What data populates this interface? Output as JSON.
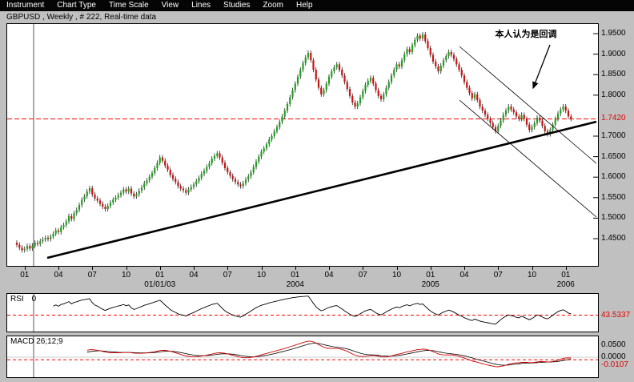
{
  "menu": {
    "items": [
      "Instrument",
      "Chart Type",
      "Time Scale",
      "View",
      "Lines",
      "Studies",
      "Zoom",
      "Help"
    ]
  },
  "title_bar": {
    "text": "GBPUSD , Weekly , # 222, Real-time data"
  },
  "chart_data": {
    "type": "candlestick",
    "symbol": "GBPUSD",
    "timeframe": "Weekly",
    "bar_count_label": "# 222",
    "first_open": 1.44,
    "wick": 0.006,
    "closes": [
      1.435,
      1.428,
      1.422,
      1.425,
      1.432,
      1.426,
      1.433,
      1.44,
      1.437,
      1.444,
      1.448,
      1.452,
      1.449,
      1.455,
      1.462,
      1.47,
      1.466,
      1.478,
      1.483,
      1.492,
      1.505,
      1.498,
      1.512,
      1.52,
      1.532,
      1.545,
      1.553,
      1.565,
      1.573,
      1.558,
      1.548,
      1.543,
      1.535,
      1.528,
      1.522,
      1.53,
      1.538,
      1.545,
      1.55,
      1.556,
      1.562,
      1.57,
      1.565,
      1.572,
      1.56,
      1.553,
      1.558,
      1.567,
      1.575,
      1.585,
      1.592,
      1.601,
      1.61,
      1.622,
      1.635,
      1.648,
      1.64,
      1.628,
      1.618,
      1.605,
      1.596,
      1.588,
      1.578,
      1.572,
      1.568,
      1.562,
      1.57,
      1.576,
      1.582,
      1.59,
      1.598,
      1.608,
      1.615,
      1.625,
      1.634,
      1.645,
      1.652,
      1.658,
      1.648,
      1.635,
      1.622,
      1.612,
      1.603,
      1.595,
      1.588,
      1.582,
      1.578,
      1.585,
      1.594,
      1.602,
      1.612,
      1.625,
      1.638,
      1.65,
      1.662,
      1.67,
      1.68,
      1.692,
      1.7,
      1.712,
      1.722,
      1.735,
      1.748,
      1.762,
      1.778,
      1.795,
      1.812,
      1.828,
      1.845,
      1.862,
      1.878,
      1.892,
      1.903,
      1.885,
      1.862,
      1.838,
      1.818,
      1.802,
      1.812,
      1.828,
      1.845,
      1.858,
      1.868,
      1.875,
      1.862,
      1.848,
      1.832,
      1.815,
      1.798,
      1.782,
      1.772,
      1.78,
      1.795,
      1.81,
      1.825,
      1.835,
      1.842,
      1.828,
      1.812,
      1.798,
      1.79,
      1.802,
      1.818,
      1.832,
      1.848,
      1.862,
      1.875,
      1.87,
      1.885,
      1.9,
      1.912,
      1.905,
      1.922,
      1.935,
      1.945,
      1.938,
      1.948,
      1.932,
      1.915,
      1.898,
      1.882,
      1.87,
      1.858,
      1.872,
      1.885,
      1.895,
      1.905,
      1.898,
      1.888,
      1.875,
      1.862,
      1.848,
      1.832,
      1.818,
      1.805,
      1.792,
      1.802,
      1.788,
      1.772,
      1.762,
      1.752,
      1.742,
      1.732,
      1.722,
      1.712,
      1.725,
      1.738,
      1.752,
      1.762,
      1.772,
      1.765,
      1.758,
      1.748,
      1.742,
      1.752,
      1.742,
      1.728,
      1.715,
      1.722,
      1.732,
      1.745,
      1.738,
      1.725,
      1.712,
      1.705,
      1.715,
      1.728,
      1.742,
      1.755,
      1.765,
      1.772,
      1.762,
      1.748,
      1.742
    ],
    "y_axis_labels": [
      "1.9500",
      "1.9000",
      "1.8500",
      "1.8000",
      "1.7000",
      "1.6500",
      "1.6000",
      "1.5500",
      "1.5000",
      "1.4500"
    ],
    "price_line": {
      "value": 1.742,
      "label": "1.7420"
    },
    "x_axis": {
      "month_ticks": [
        "01",
        "04",
        "07",
        "10",
        "01",
        "04",
        "07",
        "10",
        "01",
        "04",
        "07",
        "10",
        "01",
        "04",
        "07",
        "10",
        "01"
      ],
      "year_labels": [
        {
          "tick_index": 4,
          "text": "01/01/03"
        },
        {
          "tick_index": 8,
          "text": "2004"
        },
        {
          "tick_index": 12,
          "text": "2005"
        },
        {
          "tick_index": 16,
          "text": "2006"
        }
      ]
    },
    "annotation": {
      "text": "本人认为是回调"
    },
    "indicators": {
      "rsi": {
        "label": "RSI",
        "param": "0",
        "period": 14,
        "value": 43.5337,
        "value_label": "43.5337"
      },
      "macd": {
        "label": "MACD 26;12;9",
        "fast": 12,
        "slow": 26,
        "signal": 9,
        "axis_labels": [
          "0.0500",
          "0.0000"
        ],
        "axis_values": [
          0.05,
          0.0
        ],
        "value": -0.0107,
        "value_label": "-0.0107"
      }
    },
    "colors": {
      "up": "#1fA11f",
      "down": "#cc1111",
      "price_line": "#ff0000",
      "trendline": "#000000",
      "rsi_line": "#000000",
      "macd_line": "#cc0000",
      "signal_line": "#000000"
    }
  }
}
